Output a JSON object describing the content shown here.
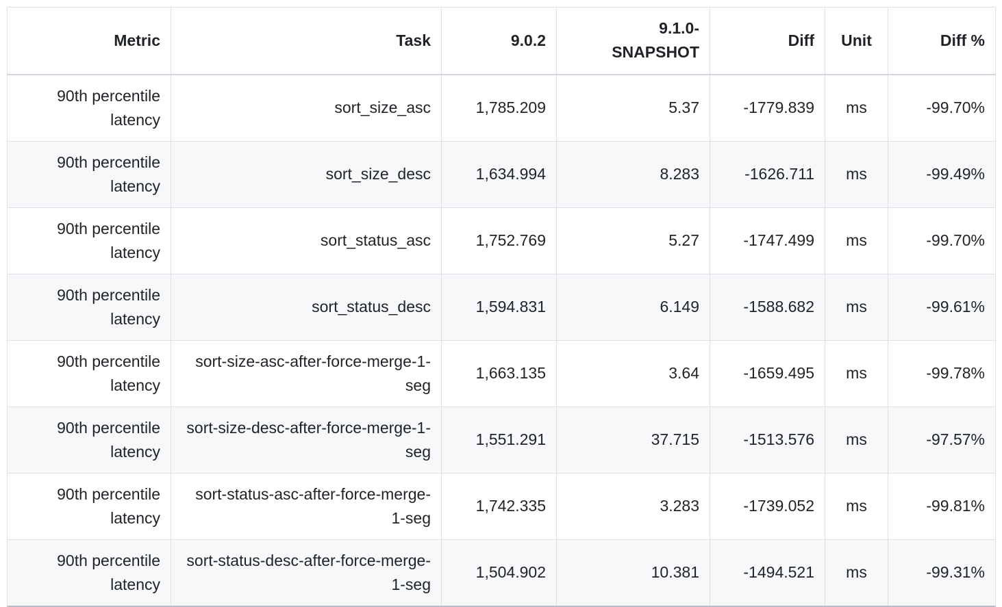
{
  "colors": {
    "text": "#1f2328",
    "row_alt_bg": "#f6f8fa",
    "cell_border": "#dde1e6",
    "header_divider": "#d0d7de",
    "table_bottom_border": "#b7bec7"
  },
  "chart_data": {
    "type": "table",
    "columns": [
      "Metric",
      "Task",
      "9.0.2",
      "9.1.0-SNAPSHOT",
      "Diff",
      "Unit",
      "Diff %"
    ],
    "column_alignments": [
      "right",
      "right",
      "right",
      "right",
      "right",
      "center",
      "right"
    ],
    "unit": "ms",
    "rows": [
      [
        "90th percentile latency",
        "sort_size_asc",
        "1,785.209",
        "5.37",
        "-1779.839",
        "ms",
        "-99.70%"
      ],
      [
        "90th percentile latency",
        "sort_size_desc",
        "1,634.994",
        "8.283",
        "-1626.711",
        "ms",
        "-99.49%"
      ],
      [
        "90th percentile latency",
        "sort_status_asc",
        "1,752.769",
        "5.27",
        "-1747.499",
        "ms",
        "-99.70%"
      ],
      [
        "90th percentile latency",
        "sort_status_desc",
        "1,594.831",
        "6.149",
        "-1588.682",
        "ms",
        "-99.61%"
      ],
      [
        "90th percentile latency",
        "sort-size-asc-after-force-merge-1-seg",
        "1,663.135",
        "3.64",
        "-1659.495",
        "ms",
        "-99.78%"
      ],
      [
        "90th percentile latency",
        "sort-size-desc-after-force-merge-1-seg",
        "1,551.291",
        "37.715",
        "-1513.576",
        "ms",
        "-97.57%"
      ],
      [
        "90th percentile latency",
        "sort-status-asc-after-force-merge-1-seg",
        "1,742.335",
        "3.283",
        "-1739.052",
        "ms",
        "-99.81%"
      ],
      [
        "90th percentile latency",
        "sort-status-desc-after-force-merge-1-seg",
        "1,504.902",
        "10.381",
        "-1494.521",
        "ms",
        "-99.31%"
      ]
    ]
  }
}
